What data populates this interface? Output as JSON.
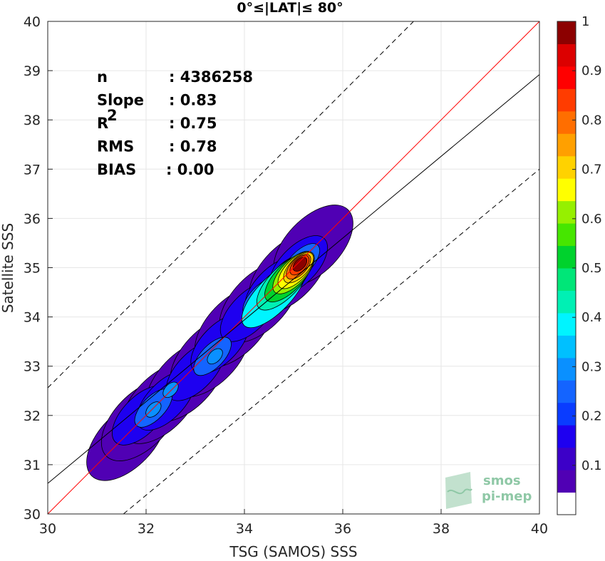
{
  "chart_data": {
    "type": "contour",
    "title": "0°≤|LAT|≤ 80°",
    "xlabel": "TSG (SAMOS) SSS",
    "ylabel": "Satellite SSS",
    "xlim": [
      30,
      40
    ],
    "ylim": [
      30,
      40
    ],
    "xticks": [
      "30",
      "32",
      "34",
      "36",
      "38",
      "40"
    ],
    "yticks": [
      "30",
      "31",
      "32",
      "33",
      "34",
      "35",
      "36",
      "37",
      "38",
      "39",
      "40"
    ],
    "grid": true,
    "stats": [
      {
        "label": "n",
        "value": ": 4386258"
      },
      {
        "label": "Slope",
        "value": ": 0.83"
      },
      {
        "label": "R",
        "sup": "2",
        "value": ": 0.75"
      },
      {
        "label": "RMS",
        "value": ": 0.78"
      },
      {
        "label": "BIAS",
        "value": ": 0.00"
      }
    ],
    "lines": [
      {
        "name": "one-to-one",
        "color": "#ff0000",
        "style": "solid",
        "x": [
          30,
          40
        ],
        "y": [
          30,
          40
        ]
      },
      {
        "name": "regression",
        "color": "#000000",
        "style": "solid",
        "x": [
          30,
          40
        ],
        "y": [
          30.62,
          38.92
        ]
      },
      {
        "name": "upper-bound",
        "color": "#000000",
        "style": "dashed",
        "x": [
          30,
          40
        ],
        "y": [
          32.56,
          42.56
        ]
      },
      {
        "name": "lower-bound",
        "color": "#000000",
        "style": "dashed",
        "x": [
          31.54,
          40
        ],
        "y": [
          30,
          37.0
        ]
      }
    ],
    "density_peak": {
      "x": 35.1,
      "y": 35.05,
      "value": 1.0
    },
    "colorbar": {
      "range": [
        0,
        1
      ],
      "ticks": [
        "0.1",
        "0.2",
        "0.3",
        "0.4",
        "0.5",
        "0.6",
        "0.7",
        "0.8",
        "0.9",
        "1"
      ],
      "levels": [
        "#ffffff",
        "#5000b4",
        "#3c00c8",
        "#1e00f0",
        "#0a3cff",
        "#1464ff",
        "#0a90ff",
        "#00c0ff",
        "#00f4ff",
        "#00f0b4",
        "#00e678",
        "#00d22d",
        "#46e600",
        "#96f000",
        "#ffff00",
        "#ffd200",
        "#ffa000",
        "#ff6e00",
        "#ff3c00",
        "#ff0000",
        "#dc0000",
        "#8c0000"
      ]
    }
  },
  "watermark": {
    "line1": "smos",
    "line2": "pi-mep"
  }
}
